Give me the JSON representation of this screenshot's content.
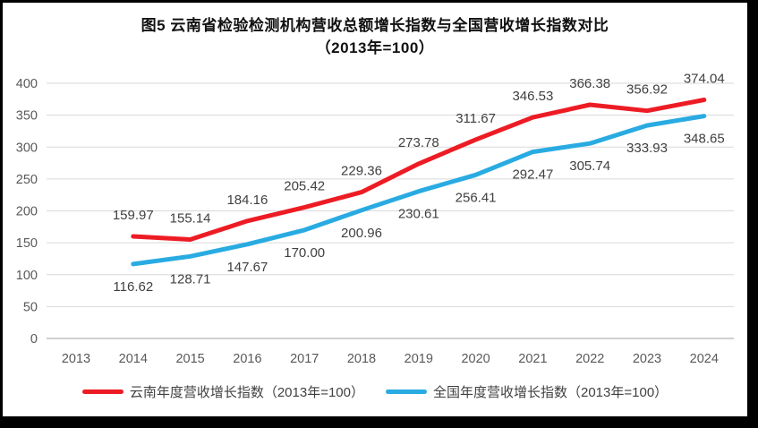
{
  "title": {
    "line1": "图5  云南省检验检测机构营收总额增长指数与全国营收增长指数对比",
    "line2": "（2013年=100）"
  },
  "chart_data": {
    "type": "line",
    "categories": [
      "2013",
      "2014",
      "2015",
      "2016",
      "2017",
      "2018",
      "2019",
      "2020",
      "2021",
      "2022",
      "2023",
      "2024"
    ],
    "series": [
      {
        "key": "yunnan",
        "name": "云南年度营收增长指数（2013年=100）",
        "color": "#ED1C24",
        "start_index": 1,
        "values": [
          159.97,
          155.14,
          184.16,
          205.42,
          229.36,
          273.78,
          311.67,
          346.53,
          366.38,
          356.92,
          374.04
        ],
        "labels": [
          "159.97",
          "155.14",
          "184.16",
          "205.42",
          "229.36",
          "273.78",
          "311.67",
          "346.53",
          "366.38",
          "356.92",
          "374.04"
        ],
        "label_position": "above"
      },
      {
        "key": "national",
        "name": "全国年度营收增长指数（2013年=100）",
        "color": "#29ABE2",
        "start_index": 1,
        "values": [
          116.62,
          128.71,
          147.67,
          170.0,
          200.96,
          230.61,
          256.41,
          292.47,
          305.74,
          333.93,
          348.65
        ],
        "labels": [
          "116.62",
          "128.71",
          "147.67",
          "170.00",
          "200.96",
          "230.61",
          "256.41",
          "292.47",
          "305.74",
          "333.93",
          "348.65"
        ],
        "label_position": "below"
      }
    ],
    "ylim": [
      0,
      400
    ],
    "yticks": [
      0,
      50,
      100,
      150,
      200,
      250,
      300,
      350,
      400
    ],
    "grid": true,
    "legend_position": "bottom",
    "colors": {
      "gridline": "#D9D9D9",
      "axis_line": "#BFBFBF",
      "tick_label": "#595959",
      "data_label": "#404040",
      "frame": "#000000"
    }
  }
}
